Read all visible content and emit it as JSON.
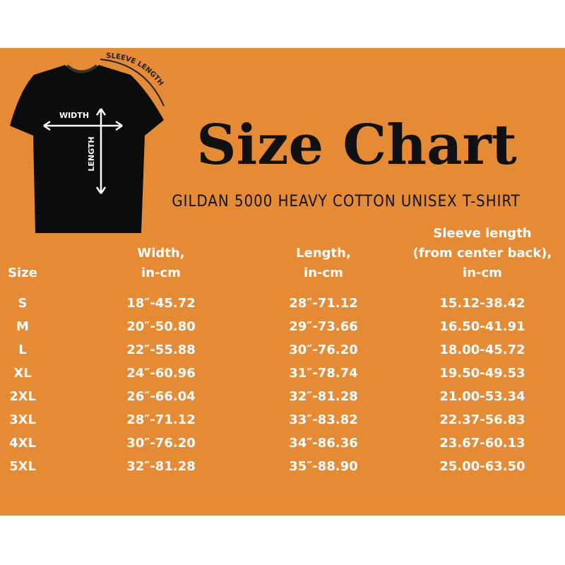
{
  "header": {
    "title": "Size Chart",
    "subtitle": "GILDAN 5000 HEAVY COTTON UNISEX T-SHIRT"
  },
  "shirt": {
    "width": "WIDTH",
    "length": "LENGTH",
    "sleeve": "SLEEVE LENGTH"
  },
  "table": {
    "columns": [
      [
        "Size"
      ],
      [
        "Width,",
        "in-cm"
      ],
      [
        "Length,",
        "in-cm"
      ],
      [
        "Sleeve length",
        "(from center back),",
        "in-cm"
      ]
    ],
    "rows": [
      [
        "S",
        "18″-45.72",
        "28″-71.12",
        "15.12-38.42"
      ],
      [
        "M",
        "20″-50.80",
        "29″-73.66",
        "16.50-41.91"
      ],
      [
        "L",
        "22″-55.88",
        "30″-76.20",
        "18.00-45.72"
      ],
      [
        "XL",
        "24″-60.96",
        "31″-78.74",
        "19.50-49.53"
      ],
      [
        "2XL",
        "26″-66.04",
        "32″-81.28",
        "21.00-53.34"
      ],
      [
        "3XL",
        "28″-71.12",
        "33″-83.82",
        "22.37-56.83"
      ],
      [
        "4XL",
        "30″-76.20",
        "34″-86.36",
        "23.67-60.13"
      ],
      [
        "5XL",
        "32″-81.28",
        "35″-88.90",
        "25.00-63.50"
      ]
    ]
  }
}
